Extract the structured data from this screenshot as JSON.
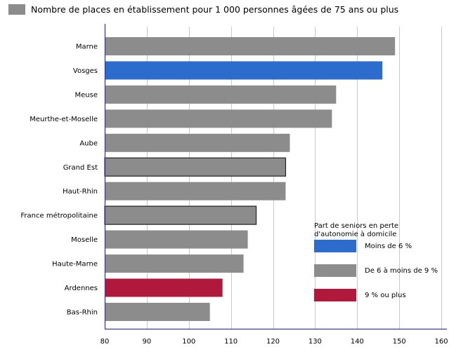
{
  "chart_data": {
    "type": "bar",
    "orientation": "horizontal",
    "series": [
      {
        "name": "Nombre de places en établissement pour 1 000 personnes âgées de 75 ans ou plus",
        "color": "#8c8c8c"
      }
    ],
    "categories": [
      "Marne",
      "Vosges",
      "Meuse",
      "Meurthe-et-Moselle",
      "Aube",
      "Grand Est",
      "Haut-Rhin",
      "France métropolitaine",
      "Moselle",
      "Haute-Marne",
      "Ardennes",
      "Bas-Rhin"
    ],
    "values": [
      149,
      146,
      135,
      134,
      124,
      123,
      123,
      116,
      114,
      113,
      108,
      105
    ],
    "groups": [
      "mid",
      "low",
      "mid",
      "mid",
      "mid",
      "mid",
      "mid",
      "mid",
      "mid",
      "mid",
      "high",
      "mid"
    ],
    "outlined": [
      false,
      false,
      false,
      false,
      false,
      true,
      false,
      true,
      false,
      false,
      false,
      false
    ],
    "xlim": [
      80,
      160
    ],
    "xticks": [
      80,
      90,
      100,
      110,
      120,
      130,
      140,
      150,
      160
    ],
    "grid": true,
    "legend": {
      "title_lines": [
        "Part de seniors en perte",
        "d'autonomie à domicile"
      ],
      "position": "bottom-right",
      "items": [
        {
          "key": "low",
          "label": "Moins de 6 %",
          "color": "#2b6ccd"
        },
        {
          "key": "mid",
          "label": "De 6 à moins de 9 %",
          "color": "#8c8c8c"
        },
        {
          "key": "high",
          "label": "9 % ou plus",
          "color": "#b0193c"
        }
      ]
    },
    "colors": {
      "axis": "#3b3ba8",
      "grid": "#c8c8c8",
      "outline": "#222222"
    }
  }
}
